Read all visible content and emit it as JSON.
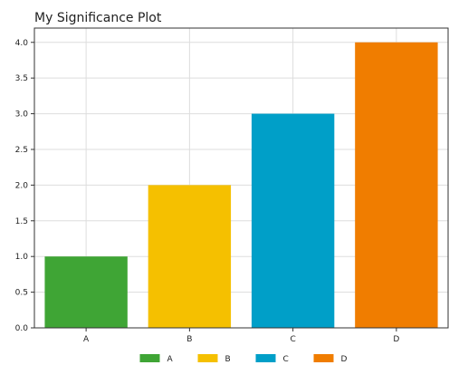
{
  "chart_data": {
    "type": "bar",
    "title": "My Significance Plot",
    "xlabel": "",
    "ylabel": "",
    "categories": [
      "A",
      "B",
      "C",
      "D"
    ],
    "values": [
      1.0,
      2.0,
      3.0,
      4.0
    ],
    "colors": [
      "#3fa535",
      "#f5c000",
      "#009fc8",
      "#f07d00"
    ],
    "ylim": [
      0,
      4.2
    ],
    "yticks": [
      0.0,
      0.5,
      1.0,
      1.5,
      2.0,
      2.5,
      3.0,
      3.5,
      4.0
    ],
    "ytick_labels": [
      "0.0",
      "0.5",
      "1.0",
      "1.5",
      "2.0",
      "2.5",
      "3.0",
      "3.5",
      "4.0"
    ],
    "grid": true,
    "legend": {
      "placement": "bottom",
      "entries": [
        "A",
        "B",
        "C",
        "D"
      ]
    }
  }
}
